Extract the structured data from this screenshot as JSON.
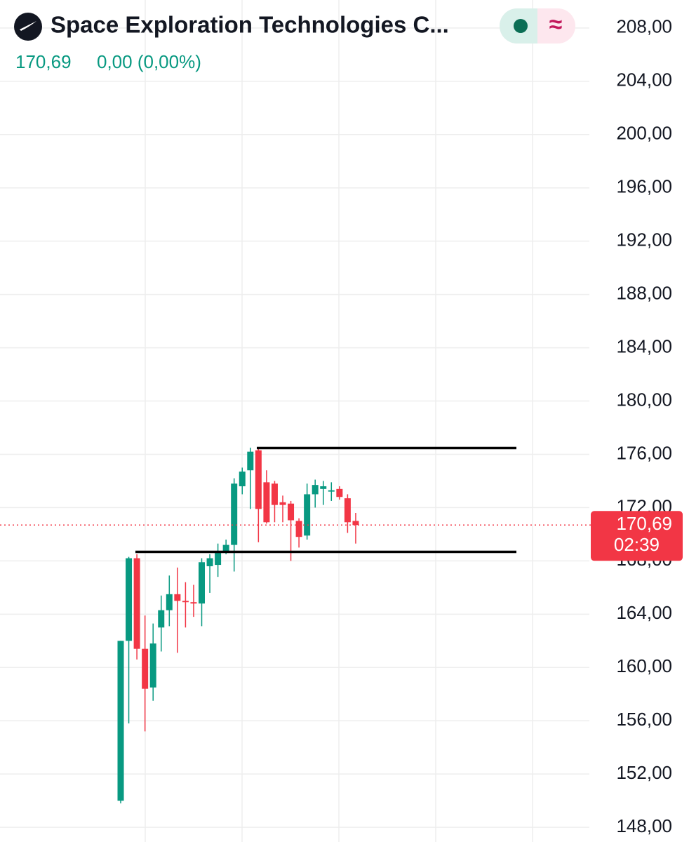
{
  "chart_data": {
    "type": "candlestick",
    "title": "Space Exploration Technologies C...",
    "price_text": "170,69",
    "change_text": "0,00 (0,00%)",
    "button_icon": "≈",
    "up_color": "#089981",
    "down_color": "#f23645",
    "grid": true,
    "ylim": [
      146.9,
      210.1
    ],
    "yticks": [
      {
        "value": 208,
        "label": "208,00"
      },
      {
        "value": 204,
        "label": "204,00"
      },
      {
        "value": 200,
        "label": "200,00"
      },
      {
        "value": 196,
        "label": "196,00"
      },
      {
        "value": 192,
        "label": "192,00"
      },
      {
        "value": 188,
        "label": "188,00"
      },
      {
        "value": 184,
        "label": "184,00"
      },
      {
        "value": 180,
        "label": "180,00"
      },
      {
        "value": 176,
        "label": "176,00"
      },
      {
        "value": 172,
        "label": "172,00"
      },
      {
        "value": 168,
        "label": "168,00"
      },
      {
        "value": 164,
        "label": "164,00"
      },
      {
        "value": 160,
        "label": "160,00"
      },
      {
        "value": 156,
        "label": "156,00"
      },
      {
        "value": 152,
        "label": "152,00"
      },
      {
        "value": 148,
        "label": "148,00"
      }
    ],
    "open": [
      150.0,
      162.0,
      168.2,
      161.4,
      158.5,
      163.0,
      164.3,
      165.5,
      165.0,
      164.9,
      164.8,
      167.6,
      167.7,
      168.7,
      169.2,
      173.6,
      174.8,
      176.3,
      173.9,
      173.8,
      172.4,
      172.3,
      171.0,
      169.9,
      173.0,
      173.4,
      173.2,
      173.4,
      172.7,
      171.0
    ],
    "high": [
      162.0,
      168.3,
      168.5,
      163.9,
      163.3,
      165.4,
      166.9,
      167.5,
      166.4,
      166.2,
      168.2,
      168.5,
      169.3,
      169.6,
      174.2,
      175.0,
      176.5,
      176.5,
      174.8,
      174.0,
      172.9,
      172.5,
      171.2,
      173.8,
      174.1,
      174.0,
      173.9,
      173.6,
      173.0,
      171.6
    ],
    "low": [
      149.8,
      155.8,
      160.6,
      155.2,
      157.5,
      161.2,
      163.1,
      161.1,
      163.0,
      163.8,
      163.1,
      165.6,
      166.8,
      168.5,
      167.2,
      173.0,
      171.9,
      169.4,
      170.8,
      170.9,
      170.9,
      168.0,
      169.0,
      169.6,
      172.0,
      172.2,
      172.5,
      172.6,
      170.1,
      169.3
    ],
    "close": [
      162.0,
      168.2,
      161.4,
      158.4,
      161.8,
      164.3,
      165.5,
      165.0,
      164.9,
      164.8,
      167.9,
      168.2,
      168.7,
      169.2,
      173.8,
      174.7,
      176.2,
      171.9,
      170.9,
      172.2,
      172.2,
      171.05,
      169.8,
      173.0,
      173.7,
      173.6,
      173.3,
      172.8,
      170.9,
      170.69
    ],
    "levels": [
      176.47,
      168.68
    ],
    "last_price": {
      "value": 170.69,
      "label": "170,69"
    },
    "countdown": "02:39"
  }
}
